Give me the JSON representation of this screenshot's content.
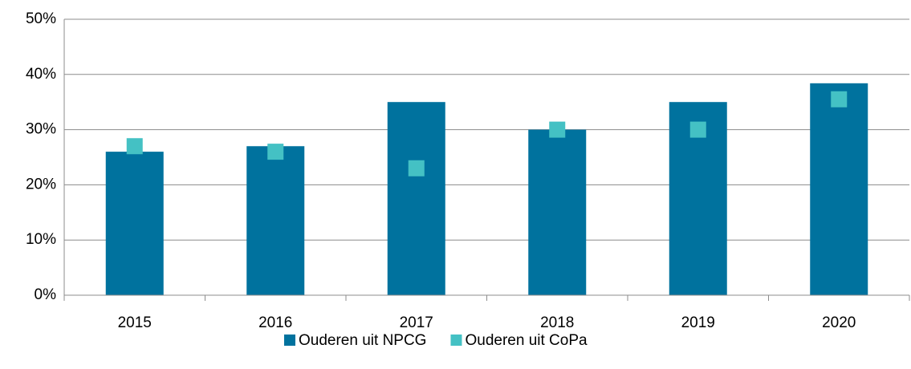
{
  "chart_data": {
    "type": "bar",
    "categories": [
      "2015",
      "2016",
      "2017",
      "2018",
      "2019",
      "2020"
    ],
    "series": [
      {
        "name": "Ouderen uit NPCG",
        "color": "#00729e",
        "type": "bar",
        "values": [
          26,
          27,
          35,
          30,
          35,
          38.4
        ]
      },
      {
        "name": "Ouderen uit CoPa",
        "color": "#44c1c4",
        "type": "scatter",
        "values": [
          27,
          26,
          23,
          30,
          30,
          35.5
        ]
      }
    ],
    "ylim": [
      0,
      50
    ],
    "yticks": [
      {
        "value": 0,
        "label": "0%"
      },
      {
        "value": 10,
        "label": "10%"
      },
      {
        "value": 20,
        "label": "20%"
      },
      {
        "value": 30,
        "label": "30%"
      },
      {
        "value": 40,
        "label": "40%"
      },
      {
        "value": 50,
        "label": "50%"
      }
    ],
    "grid": true,
    "legend": "bottom"
  }
}
